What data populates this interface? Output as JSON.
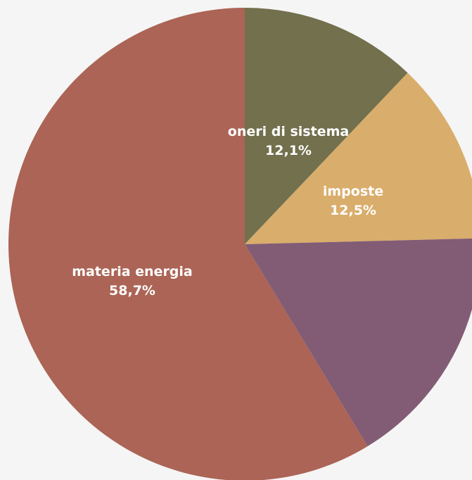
{
  "chart_data": {
    "type": "pie",
    "slices": [
      {
        "label": "oneri di sistema",
        "value": 12.1,
        "display": "12,1%",
        "color": "#72704d"
      },
      {
        "label": "imposte",
        "value": 12.5,
        "display": "12,5%",
        "color": "#d9ad6b"
      },
      {
        "label": "",
        "value": 16.7,
        "display": "",
        "color": "#825c75"
      },
      {
        "label": "materia energia",
        "value": 58.7,
        "display": "58,7%",
        "color": "#ab6455"
      }
    ],
    "start": "top",
    "direction": "clockwise",
    "legend": "none"
  }
}
